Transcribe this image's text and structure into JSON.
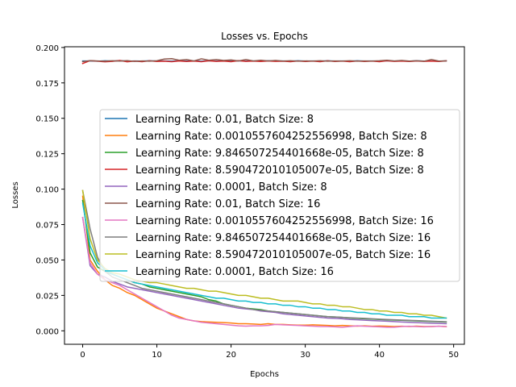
{
  "chart_data": {
    "type": "line",
    "title": "Losses vs. Epochs",
    "xlabel": "Epochs",
    "ylabel": "Losses",
    "xlim": [
      -2.45,
      51.45
    ],
    "ylim": [
      -0.0095,
      0.2005
    ],
    "xticks": [
      0,
      10,
      20,
      30,
      40,
      50
    ],
    "xtick_labels": [
      "0",
      "10",
      "20",
      "30",
      "40",
      "50"
    ],
    "yticks": [
      0.0,
      0.025,
      0.05,
      0.075,
      0.1,
      0.125,
      0.15,
      0.175,
      0.2
    ],
    "ytick_labels": [
      "0.000",
      "0.025",
      "0.050",
      "0.075",
      "0.100",
      "0.125",
      "0.150",
      "0.175",
      "0.200"
    ],
    "grid": false,
    "legend_position": "center-right",
    "series": [
      {
        "name": "Learning Rate: 0.01, Batch Size: 8",
        "color": "#1f77b4",
        "values": [
          0.1905,
          0.1905,
          0.1903,
          0.1906,
          0.1904,
          0.1907,
          0.1903,
          0.1905,
          0.1904,
          0.1906,
          0.1904,
          0.1905,
          0.1903,
          0.1906,
          0.1904,
          0.1905,
          0.1903,
          0.1906,
          0.1904,
          0.1905,
          0.1903,
          0.1906,
          0.1904,
          0.1905,
          0.1903,
          0.1906,
          0.1904,
          0.1905,
          0.1903,
          0.1906,
          0.1904,
          0.1905,
          0.1903,
          0.1906,
          0.1904,
          0.1905,
          0.1903,
          0.1906,
          0.1904,
          0.1905,
          0.1903,
          0.1906,
          0.1904,
          0.1905,
          0.1903,
          0.1906,
          0.1904,
          0.1905,
          0.1903,
          0.1905
        ]
      },
      {
        "name": "Learning Rate: 0.0010557604252556998, Batch Size: 8",
        "color": "#ff7f0e",
        "values": [
          0.095,
          0.05,
          0.042,
          0.036,
          0.032,
          0.03,
          0.027,
          0.025,
          0.022,
          0.019,
          0.016,
          0.014,
          0.012,
          0.01,
          0.008,
          0.007,
          0.0065,
          0.0062,
          0.006,
          0.0058,
          0.0055,
          0.005,
          0.005,
          0.0048,
          0.0045,
          0.005,
          0.0045,
          0.0045,
          0.0042,
          0.004,
          0.004,
          0.0042,
          0.004,
          0.0038,
          0.0035,
          0.0038,
          0.0035,
          0.0033,
          0.0035,
          0.0032,
          0.0034,
          0.0032,
          0.003,
          0.0032,
          0.003,
          0.0033,
          0.003,
          0.003,
          0.0032,
          0.003
        ]
      },
      {
        "name": "Learning Rate: 9.846507254401668e-05, Batch Size: 8",
        "color": "#2ca02c",
        "values": [
          0.092,
          0.055,
          0.045,
          0.042,
          0.04,
          0.038,
          0.036,
          0.034,
          0.033,
          0.031,
          0.03,
          0.029,
          0.028,
          0.027,
          0.026,
          0.025,
          0.024,
          0.022,
          0.021,
          0.019,
          0.018,
          0.017,
          0.016,
          0.0155,
          0.015,
          0.014,
          0.0135,
          0.013,
          0.0125,
          0.012,
          0.0115,
          0.011,
          0.0105,
          0.01,
          0.0098,
          0.0095,
          0.009,
          0.0088,
          0.0085,
          0.0083,
          0.008,
          0.0078,
          0.0076,
          0.0074,
          0.0072,
          0.007,
          0.0068,
          0.0066,
          0.0064,
          0.0062
        ]
      },
      {
        "name": "Learning Rate: 8.590472010105007e-05, Batch Size: 8",
        "color": "#d62728",
        "values": [
          0.1887,
          0.1907,
          0.1903,
          0.1899,
          0.1902,
          0.1908,
          0.1899,
          0.1904,
          0.19,
          0.1906,
          0.1901,
          0.1903,
          0.19,
          0.1905,
          0.1901,
          0.1904,
          0.19,
          0.1906,
          0.1902,
          0.1904,
          0.19,
          0.1907,
          0.1902,
          0.1904,
          0.1901,
          0.1905,
          0.1902,
          0.1903,
          0.19,
          0.1905,
          0.1901,
          0.1904,
          0.19,
          0.1906,
          0.1901,
          0.1904,
          0.19,
          0.1905,
          0.1901,
          0.1904,
          0.19,
          0.1906,
          0.1902,
          0.1904,
          0.1901,
          0.1905,
          0.1902,
          0.1904,
          0.1901,
          0.1906
        ]
      },
      {
        "name": "Learning Rate: 0.0001, Batch Size: 8",
        "color": "#9467bd",
        "values": [
          0.08,
          0.046,
          0.04,
          0.038,
          0.035,
          0.033,
          0.031,
          0.03,
          0.029,
          0.028,
          0.027,
          0.026,
          0.025,
          0.024,
          0.023,
          0.022,
          0.021,
          0.02,
          0.019,
          0.018,
          0.017,
          0.016,
          0.0155,
          0.015,
          0.014,
          0.0135,
          0.013,
          0.012,
          0.0115,
          0.011,
          0.0105,
          0.01,
          0.0095,
          0.009,
          0.0088,
          0.0085,
          0.008,
          0.0078,
          0.0075,
          0.0072,
          0.007,
          0.0068,
          0.0065,
          0.0062,
          0.006,
          0.0058,
          0.0056,
          0.0054,
          0.0052,
          0.005
        ]
      },
      {
        "name": "Learning Rate: 0.01, Batch Size: 16",
        "color": "#8c564b",
        "values": [
          0.19,
          0.1907,
          0.1905,
          0.1903,
          0.1906,
          0.1904,
          0.1907,
          0.1902,
          0.1905,
          0.1903,
          0.1906,
          0.1918,
          0.1921,
          0.191,
          0.1915,
          0.1905,
          0.192,
          0.191,
          0.1915,
          0.1908,
          0.1912,
          0.1905,
          0.1915,
          0.1905,
          0.191,
          0.1905,
          0.1908,
          0.1904,
          0.1906,
          0.1903,
          0.1905,
          0.1904,
          0.1906,
          0.1903,
          0.1905,
          0.1904,
          0.1906,
          0.1903,
          0.1905,
          0.1904,
          0.1906,
          0.191,
          0.1905,
          0.1908,
          0.1904,
          0.1906,
          0.1903,
          0.1915,
          0.1904,
          0.1905
        ]
      },
      {
        "name": "Learning Rate: 0.0010557604252556998, Batch Size: 16",
        "color": "#e377c2",
        "values": [
          0.08,
          0.048,
          0.04,
          0.036,
          0.034,
          0.032,
          0.029,
          0.026,
          0.023,
          0.02,
          0.017,
          0.014,
          0.011,
          0.009,
          0.008,
          0.007,
          0.006,
          0.0055,
          0.005,
          0.0045,
          0.004,
          0.0035,
          0.0033,
          0.0035,
          0.0035,
          0.0038,
          0.0045,
          0.0042,
          0.004,
          0.0038,
          0.0035,
          0.0033,
          0.003,
          0.003,
          0.0028,
          0.0025,
          0.003,
          0.0035,
          0.0032,
          0.003,
          0.0028,
          0.0025,
          0.0025,
          0.003,
          0.0032,
          0.003,
          0.0028,
          0.003,
          0.0032,
          0.003
        ]
      },
      {
        "name": "Learning Rate: 9.846507254401668e-05, Batch Size: 16",
        "color": "#7f7f7f",
        "values": [
          0.099,
          0.072,
          0.052,
          0.042,
          0.038,
          0.036,
          0.034,
          0.032,
          0.03,
          0.029,
          0.028,
          0.027,
          0.026,
          0.025,
          0.024,
          0.023,
          0.022,
          0.021,
          0.02,
          0.019,
          0.018,
          0.017,
          0.016,
          0.015,
          0.0145,
          0.014,
          0.0135,
          0.013,
          0.0125,
          0.012,
          0.0115,
          0.011,
          0.0105,
          0.01,
          0.0098,
          0.0095,
          0.0092,
          0.009,
          0.0088,
          0.0085,
          0.0082,
          0.008,
          0.0078,
          0.0076,
          0.0074,
          0.0072,
          0.007,
          0.0068,
          0.0066,
          0.0064
        ]
      },
      {
        "name": "Learning Rate: 8.590472010105007e-05, Batch Size: 16",
        "color": "#bcbd22",
        "values": [
          0.099,
          0.065,
          0.05,
          0.044,
          0.041,
          0.04,
          0.038,
          0.036,
          0.035,
          0.034,
          0.034,
          0.033,
          0.032,
          0.031,
          0.03,
          0.03,
          0.029,
          0.028,
          0.028,
          0.027,
          0.026,
          0.025,
          0.025,
          0.024,
          0.023,
          0.023,
          0.022,
          0.021,
          0.021,
          0.021,
          0.02,
          0.019,
          0.019,
          0.018,
          0.018,
          0.017,
          0.017,
          0.016,
          0.015,
          0.015,
          0.014,
          0.014,
          0.013,
          0.013,
          0.012,
          0.012,
          0.011,
          0.011,
          0.01,
          0.009
        ]
      },
      {
        "name": "Learning Rate: 0.0001, Batch Size: 16",
        "color": "#17becf",
        "values": [
          0.09,
          0.06,
          0.048,
          0.043,
          0.04,
          0.038,
          0.036,
          0.034,
          0.033,
          0.032,
          0.031,
          0.03,
          0.029,
          0.028,
          0.027,
          0.026,
          0.025,
          0.024,
          0.023,
          0.023,
          0.022,
          0.021,
          0.021,
          0.02,
          0.02,
          0.019,
          0.019,
          0.018,
          0.018,
          0.017,
          0.017,
          0.016,
          0.016,
          0.015,
          0.015,
          0.014,
          0.014,
          0.013,
          0.013,
          0.012,
          0.012,
          0.011,
          0.011,
          0.011,
          0.01,
          0.01,
          0.01,
          0.009,
          0.009,
          0.009
        ]
      }
    ]
  }
}
